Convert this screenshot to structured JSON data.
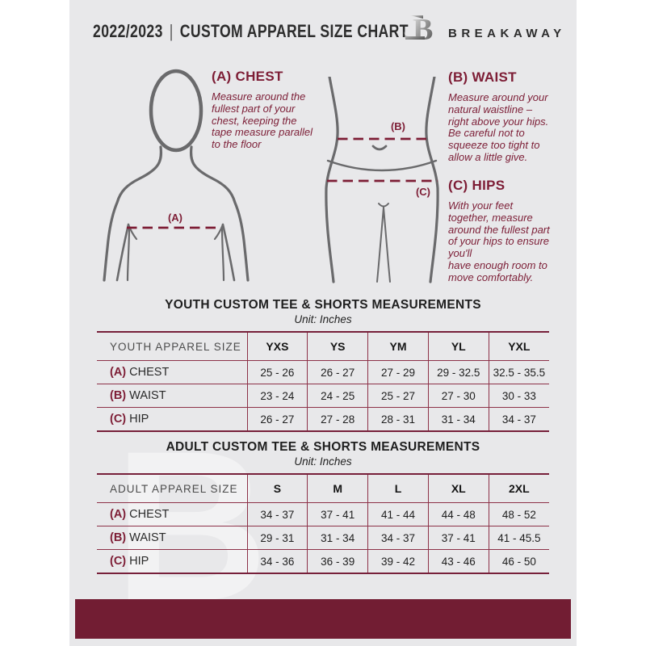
{
  "header": {
    "year_range": "2022/2023",
    "divider": "|",
    "title": "CUSTOM APPAREL SIZE CHART",
    "brand": "BREAKAWAY",
    "logo_letter": "B"
  },
  "diagram": {
    "chest_marker": "(A)",
    "waist_marker": "(B)",
    "hips_marker": "(C)"
  },
  "measure_sections": {
    "chest": {
      "heading": "(A) CHEST",
      "body": "Measure around the\nfullest part of your\nchest, keeping the\ntape measure parallel\nto the floor"
    },
    "waist": {
      "heading": "(B) WAIST",
      "body": "Measure around your\nnatural waistline –\nright above your hips.\nBe careful not to\nsqueeze too tight to\nallow a little give."
    },
    "hips": {
      "heading": "(C) HIPS",
      "body": "With your feet\ntogether, measure\naround the fullest part\nof your hips to ensure\nyou'll\nhave enough room to\nmove comfortably."
    }
  },
  "tables": {
    "youth": {
      "title": "YOUTH CUSTOM TEE & SHORTS MEASUREMENTS",
      "unit": "Unit: Inches",
      "size_label": "YOUTH APPAREL SIZE",
      "sizes": [
        "YXS",
        "YS",
        "YM",
        "YL",
        "YXL"
      ],
      "rows": [
        {
          "prefix": "(A)",
          "label": "CHEST",
          "values": [
            "25 - 26",
            "26 - 27",
            "27 - 29",
            "29 - 32.5",
            "32.5 - 35.5"
          ]
        },
        {
          "prefix": "(B)",
          "label": "WAIST",
          "values": [
            "23 - 24",
            "24 - 25",
            "25 - 27",
            "27 - 30",
            "30 - 33"
          ]
        },
        {
          "prefix": "(C)",
          "label": "HIP",
          "values": [
            "26 - 27",
            "27 - 28",
            "28 - 31",
            "31 - 34",
            "34 - 37"
          ]
        }
      ]
    },
    "adult": {
      "title": "ADULT CUSTOM TEE & SHORTS MEASUREMENTS",
      "unit": "Unit: Inches",
      "size_label": "ADULT APPAREL SIZE",
      "sizes": [
        "S",
        "M",
        "L",
        "XL",
        "2XL"
      ],
      "rows": [
        {
          "prefix": "(A)",
          "label": "CHEST",
          "values": [
            "34 - 37",
            "37 - 41",
            "41 - 44",
            "44 - 48",
            "48 - 52"
          ]
        },
        {
          "prefix": "(B)",
          "label": "WAIST",
          "values": [
            "29 - 31",
            "31 - 34",
            "34 - 37",
            "37 - 41",
            "41 - 45.5"
          ]
        },
        {
          "prefix": "(C)",
          "label": "HIP",
          "values": [
            "34 - 36",
            "36 - 39",
            "39 - 42",
            "43 - 46",
            "46 - 50"
          ]
        }
      ]
    }
  },
  "watermark_letter": "B",
  "colors": {
    "maroon": "#7d1d35",
    "footer_maroon": "#721d33",
    "table_line": "#8d3148",
    "figure_gray": "#6a6a6c",
    "page_bg": "#e8e8ea"
  }
}
